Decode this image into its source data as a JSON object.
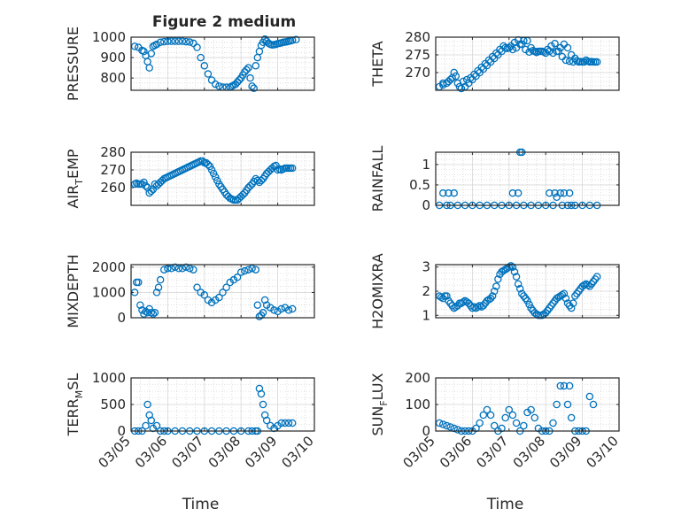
{
  "figure": {
    "title": "Figure 2 medium",
    "marker_color": "#0072BD",
    "date_ticks": [
      "03/05",
      "03/06",
      "03/07",
      "03/08",
      "03/09",
      "03/10"
    ],
    "xlabel": "Time"
  },
  "chart_data": [
    {
      "type": "scatter",
      "ylabel": "PRESSURE",
      "ylim": [
        740,
        1000
      ],
      "yticks": [
        800,
        900,
        1000
      ],
      "x": [
        0.1,
        0.2,
        0.3,
        0.35,
        0.4,
        0.45,
        0.5,
        0.55,
        0.6,
        0.65,
        0.7,
        0.8,
        0.9,
        1.0,
        1.1,
        1.2,
        1.3,
        1.4,
        1.5,
        1.6,
        1.7,
        1.8,
        1.9,
        2.0,
        2.1,
        2.2,
        2.3,
        2.4,
        2.5,
        2.6,
        2.7,
        2.75,
        2.8,
        2.85,
        2.9,
        2.95,
        3.0,
        3.05,
        3.1,
        3.15,
        3.2,
        3.25,
        3.3,
        3.35,
        3.4,
        3.45,
        3.5,
        3.55,
        3.6,
        3.65,
        3.7,
        3.75,
        3.8,
        3.85,
        3.9,
        3.95,
        4.0,
        4.05,
        4.1,
        4.15,
        4.2,
        4.25,
        4.3,
        4.35,
        4.4,
        4.5
      ],
      "y": [
        955,
        950,
        935,
        930,
        910,
        880,
        850,
        920,
        955,
        960,
        965,
        975,
        978,
        980,
        980,
        980,
        980,
        980,
        978,
        976,
        970,
        950,
        900,
        860,
        820,
        790,
        770,
        760,
        755,
        755,
        755,
        760,
        765,
        770,
        780,
        790,
        800,
        815,
        830,
        840,
        850,
        800,
        760,
        750,
        860,
        900,
        930,
        960,
        975,
        990,
        980,
        970,
        965,
        962,
        963,
        965,
        968,
        970,
        972,
        975,
        976,
        978,
        980,
        982,
        985,
        988
      ]
    },
    {
      "type": "scatter",
      "ylabel": "THETA",
      "ylim": [
        265,
        280
      ],
      "yticks": [
        270,
        275,
        280
      ],
      "x": [
        0.1,
        0.2,
        0.3,
        0.4,
        0.5,
        0.6,
        0.7,
        0.8,
        0.9,
        1.0,
        1.1,
        1.2,
        1.3,
        1.4,
        1.5,
        1.6,
        1.7,
        1.8,
        1.9,
        2.0,
        2.1,
        2.2,
        2.3,
        2.4,
        2.5,
        2.6,
        2.7,
        2.8,
        2.9,
        3.0,
        3.1,
        3.2,
        3.3,
        3.4,
        3.5,
        3.6,
        3.7,
        3.8,
        3.9,
        4.0,
        4.1,
        4.2,
        4.3,
        4.4
      ],
      "y": [
        266,
        266.5,
        267,
        268,
        270,
        267,
        265.5,
        266,
        267,
        268,
        269,
        270,
        271,
        272,
        273,
        274,
        275,
        276,
        277,
        277,
        276.5,
        277,
        278,
        279,
        279,
        277,
        276,
        276,
        276,
        275.5,
        276,
        275.5,
        276,
        277,
        278,
        277,
        275,
        274,
        273,
        273,
        273.5,
        273,
        273,
        273
      ],
      "x2": [
        0.2,
        0.35,
        0.45,
        0.55,
        0.65,
        0.75,
        0.85,
        0.95,
        1.05,
        1.15,
        1.25,
        1.35,
        1.45,
        1.55,
        1.65,
        1.75,
        1.85,
        1.95,
        2.05,
        2.15,
        2.25,
        2.35,
        2.45,
        2.55,
        2.65,
        2.75,
        2.85,
        2.95,
        3.05,
        3.15,
        3.25,
        3.35,
        3.45,
        3.55,
        3.65,
        3.75,
        3.85,
        3.95,
        4.05,
        4.15,
        4.25,
        4.35
      ],
      "y2": [
        267,
        267.5,
        268.5,
        269,
        266,
        267.5,
        268,
        268.5,
        269.5,
        270.5,
        271.5,
        272.5,
        273.5,
        274.5,
        275.5,
        276.5,
        277.5,
        276.8,
        277.5,
        278.5,
        279.2,
        278,
        276.5,
        275.8,
        276.2,
        275.7,
        276,
        275.8,
        276.5,
        277.5,
        278.2,
        276,
        274.5,
        273.5,
        273.2,
        273,
        273.3,
        273.1,
        273,
        273.2,
        273.1,
        273
      ]
    },
    {
      "type": "scatter",
      "ylabel": "AIR_TEMP",
      "ylim": [
        250,
        280
      ],
      "yticks": [
        260,
        270,
        280
      ],
      "x": [
        0.1,
        0.2,
        0.3,
        0.4,
        0.5,
        0.6,
        0.7,
        0.8,
        0.9,
        1.0,
        1.1,
        1.2,
        1.3,
        1.4,
        1.5,
        1.6,
        1.7,
        1.8,
        1.9,
        2.0,
        2.1,
        2.2,
        2.3,
        2.4,
        2.5,
        2.6,
        2.7,
        2.8,
        2.9,
        3.0,
        3.1,
        3.2,
        3.3,
        3.4,
        3.5,
        3.6,
        3.7,
        3.8,
        3.9,
        4.0,
        4.1,
        4.2,
        4.3,
        4.4
      ],
      "y": [
        262,
        262,
        262,
        261,
        257,
        259,
        261,
        263,
        265,
        266,
        267,
        268,
        269,
        270,
        271,
        272,
        273,
        274,
        275,
        274,
        273,
        270,
        266,
        262,
        259,
        256,
        254,
        253,
        253,
        255,
        257,
        260,
        262,
        265,
        263,
        265,
        268,
        270,
        272,
        270,
        270,
        271,
        271,
        271
      ],
      "x2": [
        0.15,
        0.25,
        0.35,
        0.45,
        0.55,
        0.65,
        0.75,
        0.85,
        0.95,
        1.05,
        1.15,
        1.25,
        1.35,
        1.45,
        1.55,
        1.65,
        1.75,
        1.85,
        1.95,
        2.05,
        2.15,
        2.25,
        2.35,
        2.45,
        2.55,
        2.65,
        2.75,
        2.85,
        2.95,
        3.05,
        3.15,
        3.25,
        3.35,
        3.45,
        3.55,
        3.65,
        3.75,
        3.85,
        3.95,
        4.05,
        4.15,
        4.25,
        4.35
      ],
      "y2": [
        262.5,
        262,
        263,
        260,
        258,
        262,
        262,
        264,
        265.5,
        266.5,
        267.5,
        268.5,
        269.5,
        270.5,
        271.5,
        272.5,
        273.5,
        274.5,
        275,
        274,
        272,
        268,
        264,
        260.5,
        257.5,
        255,
        253.5,
        253,
        254,
        256,
        258.5,
        261,
        263.5,
        264,
        264,
        266.5,
        269,
        271,
        272.5,
        270.5,
        270.5,
        271,
        271
      ]
    },
    {
      "type": "scatter",
      "ylabel": "RAINFALL",
      "ylim": [
        0,
        1.3
      ],
      "yticks": [
        0,
        0.5,
        1
      ],
      "x": [
        0.1,
        0.2,
        0.3,
        0.35,
        0.4,
        0.5,
        0.6,
        0.8,
        1.0,
        1.2,
        1.4,
        1.6,
        1.8,
        2.0,
        2.1,
        2.2,
        2.25,
        2.3,
        2.35,
        2.4,
        2.6,
        2.8,
        3.0,
        3.1,
        3.2,
        3.25,
        3.3,
        3.4,
        3.45,
        3.5,
        3.6,
        3.65,
        3.7,
        3.8,
        4.0,
        4.2,
        4.4
      ],
      "y": [
        0,
        0.3,
        0,
        0.3,
        0,
        0.3,
        0,
        0,
        0,
        0,
        0,
        0,
        0,
        0,
        0.3,
        0,
        0.3,
        1.3,
        1.3,
        0,
        0,
        0,
        0,
        0.3,
        0,
        0.3,
        0.2,
        0.3,
        0,
        0.3,
        0,
        0.3,
        0,
        0,
        0,
        0,
        0
      ]
    },
    {
      "type": "scatter",
      "ylabel": "MIXDEPTH",
      "ylim": [
        0,
        2100
      ],
      "yticks": [
        0,
        1000,
        2000
      ],
      "x": [
        0.1,
        0.15,
        0.2,
        0.25,
        0.3,
        0.35,
        0.4,
        0.45,
        0.5,
        0.55,
        0.6,
        0.65,
        0.7,
        0.75,
        0.8,
        0.9,
        1.0,
        1.1,
        1.2,
        1.3,
        1.4,
        1.5,
        1.6,
        1.7,
        1.8,
        1.9,
        2.0,
        2.1,
        2.2,
        2.3,
        2.4,
        2.5,
        2.6,
        2.7,
        2.8,
        2.9,
        3.0,
        3.1,
        3.2,
        3.3,
        3.4,
        3.45,
        3.5,
        3.55,
        3.6,
        3.65,
        3.7,
        3.8,
        3.9,
        4.0,
        4.1,
        4.2,
        4.3,
        4.4
      ],
      "y": [
        1000,
        1400,
        1400,
        500,
        300,
        150,
        250,
        200,
        350,
        200,
        150,
        200,
        1000,
        1200,
        1500,
        1900,
        1950,
        1950,
        2000,
        1950,
        1950,
        2000,
        1950,
        1900,
        1200,
        1000,
        900,
        700,
        600,
        700,
        800,
        1000,
        1200,
        1400,
        1500,
        1600,
        1800,
        1850,
        1900,
        1950,
        1900,
        500,
        50,
        100,
        200,
        700,
        500,
        400,
        300,
        250,
        350,
        400,
        300,
        350
      ]
    },
    {
      "type": "scatter",
      "ylabel": "H2OMIXRA",
      "ylim": [
        0.9,
        3.1
      ],
      "yticks": [
        1,
        2,
        3
      ],
      "x": [
        0.1,
        0.2,
        0.3,
        0.4,
        0.5,
        0.6,
        0.7,
        0.8,
        0.9,
        1.0,
        1.1,
        1.2,
        1.3,
        1.4,
        1.5,
        1.6,
        1.7,
        1.8,
        1.9,
        2.0,
        2.1,
        2.2,
        2.3,
        2.4,
        2.5,
        2.6,
        2.7,
        2.8,
        2.9,
        3.0,
        3.1,
        3.2,
        3.3,
        3.4,
        3.5,
        3.6,
        3.7,
        3.8,
        3.9,
        4.0,
        4.1,
        4.2,
        4.3,
        4.4
      ],
      "y": [
        1.8,
        1.7,
        1.8,
        1.5,
        1.3,
        1.4,
        1.5,
        1.6,
        1.5,
        1.3,
        1.3,
        1.4,
        1.4,
        1.6,
        1.7,
        2.0,
        2.5,
        2.8,
        2.9,
        3.0,
        3.0,
        2.6,
        2.1,
        1.8,
        1.6,
        1.3,
        1.1,
        1.0,
        1.0,
        1.1,
        1.3,
        1.5,
        1.7,
        1.8,
        1.9,
        1.5,
        1.3,
        1.8,
        2.0,
        2.2,
        2.3,
        2.2,
        2.4,
        2.6
      ],
      "x2": [
        0.15,
        0.25,
        0.35,
        0.45,
        0.55,
        0.65,
        0.75,
        0.85,
        0.95,
        1.05,
        1.15,
        1.25,
        1.35,
        1.45,
        1.55,
        1.65,
        1.75,
        1.85,
        1.95,
        2.05,
        2.15,
        2.25,
        2.35,
        2.45,
        2.55,
        2.65,
        2.75,
        2.85,
        2.95,
        3.05,
        3.15,
        3.25,
        3.35,
        3.45,
        3.55,
        3.65,
        3.75,
        3.85,
        3.95,
        4.05,
        4.15,
        4.25,
        4.35
      ],
      "y2": [
        1.75,
        1.8,
        1.6,
        1.4,
        1.35,
        1.5,
        1.55,
        1.55,
        1.4,
        1.35,
        1.35,
        1.35,
        1.5,
        1.65,
        1.8,
        2.2,
        2.7,
        2.85,
        2.95,
        3.05,
        2.8,
        2.3,
        1.9,
        1.7,
        1.45,
        1.2,
        1.05,
        1.0,
        1.05,
        1.2,
        1.4,
        1.6,
        1.75,
        1.85,
        1.7,
        1.4,
        1.5,
        1.9,
        2.1,
        2.25,
        2.25,
        2.3,
        2.5
      ]
    },
    {
      "type": "scatter",
      "ylabel": "TERR_MSL",
      "ylim": [
        0,
        1000
      ],
      "yticks": [
        0,
        500,
        1000
      ],
      "x": [
        0.1,
        0.2,
        0.3,
        0.4,
        0.45,
        0.5,
        0.55,
        0.6,
        0.7,
        0.8,
        0.9,
        1.0,
        1.2,
        1.4,
        1.6,
        1.8,
        2.0,
        2.2,
        2.4,
        2.6,
        2.8,
        3.0,
        3.2,
        3.3,
        3.4,
        3.45,
        3.5,
        3.55,
        3.6,
        3.65,
        3.7,
        3.8,
        3.9,
        4.0,
        4.1,
        4.2,
        4.3,
        4.4
      ],
      "y": [
        0,
        0,
        0,
        100,
        500,
        300,
        200,
        50,
        100,
        0,
        0,
        0,
        0,
        0,
        0,
        0,
        0,
        0,
        0,
        0,
        0,
        0,
        0,
        0,
        0,
        0,
        800,
        700,
        500,
        300,
        200,
        100,
        50,
        100,
        150,
        150,
        150,
        150
      ]
    },
    {
      "type": "scatter",
      "ylabel": "SUN_FLUX",
      "ylim": [
        0,
        200
      ],
      "yticks": [
        0,
        100,
        200
      ],
      "x": [
        0.1,
        0.2,
        0.3,
        0.4,
        0.5,
        0.6,
        0.7,
        0.8,
        0.9,
        1.0,
        1.1,
        1.2,
        1.3,
        1.4,
        1.5,
        1.6,
        1.7,
        1.8,
        1.9,
        2.0,
        2.1,
        2.2,
        2.3,
        2.4,
        2.5,
        2.6,
        2.7,
        2.8,
        2.9,
        3.0,
        3.1,
        3.2,
        3.3,
        3.4,
        3.5,
        3.6,
        3.65,
        3.7,
        3.8,
        3.9,
        4.0,
        4.1,
        4.2,
        4.3
      ],
      "y": [
        30,
        25,
        20,
        15,
        10,
        5,
        0,
        0,
        0,
        0,
        10,
        30,
        60,
        80,
        60,
        20,
        0,
        10,
        50,
        80,
        60,
        30,
        0,
        20,
        70,
        80,
        50,
        10,
        0,
        0,
        0,
        30,
        100,
        170,
        170,
        100,
        170,
        50,
        0,
        0,
        0,
        0,
        130,
        100
      ]
    }
  ]
}
